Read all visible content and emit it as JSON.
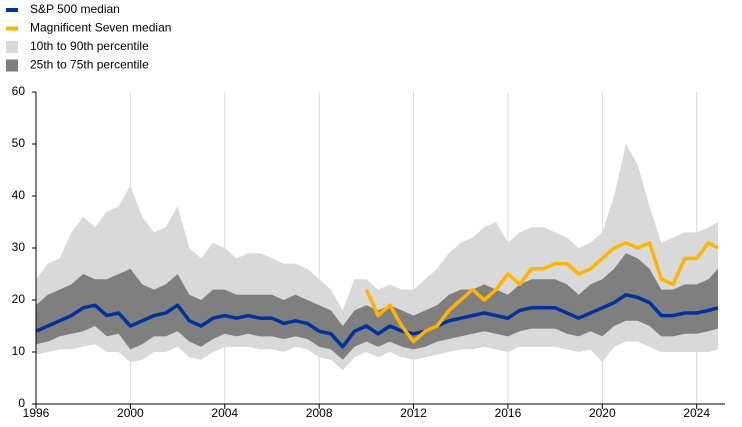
{
  "chart_data": {
    "type": "line",
    "x": [
      1996,
      1996.5,
      1997,
      1997.5,
      1998,
      1998.5,
      1999,
      1999.5,
      2000,
      2000.5,
      2001,
      2001.5,
      2002,
      2002.5,
      2003,
      2003.5,
      2004,
      2004.5,
      2005,
      2005.5,
      2006,
      2006.5,
      2007,
      2007.5,
      2008,
      2008.5,
      2009,
      2009.5,
      2010,
      2010.5,
      2011,
      2011.5,
      2012,
      2012.5,
      2013,
      2013.5,
      2014,
      2014.5,
      2015,
      2015.5,
      2016,
      2016.5,
      2017,
      2017.5,
      2018,
      2018.5,
      2019,
      2019.5,
      2020,
      2020.5,
      2021,
      2021.5,
      2022,
      2022.5,
      2023,
      2023.5,
      2024,
      2024.5,
      2024.9
    ],
    "series": [
      {
        "name": "S&P 500 median",
        "color": "#003299",
        "values": [
          14,
          15,
          16,
          17,
          18.5,
          19,
          17,
          17.5,
          15,
          16,
          17,
          17.5,
          19,
          16,
          15,
          16.5,
          17,
          16.5,
          17,
          16.5,
          16.5,
          15.5,
          16,
          15.5,
          14,
          13.5,
          11,
          14,
          15,
          13.5,
          15,
          14,
          13.5,
          14,
          15,
          16,
          16.5,
          17,
          17.5,
          17,
          16.5,
          18,
          18.5,
          18.5,
          18.5,
          17.5,
          16.5,
          17.5,
          18.5,
          19.5,
          21,
          20.5,
          19.5,
          17,
          17,
          17.5,
          17.5,
          18,
          18.5
        ]
      },
      {
        "name": "Magnificent Seven median",
        "color": "#ffb400",
        "values": [
          null,
          null,
          null,
          null,
          null,
          null,
          null,
          null,
          null,
          null,
          null,
          null,
          null,
          null,
          null,
          null,
          null,
          null,
          null,
          null,
          null,
          null,
          null,
          null,
          null,
          null,
          null,
          null,
          22,
          17,
          19,
          15,
          12,
          14,
          15,
          18,
          20,
          22,
          20,
          22,
          25,
          23,
          26,
          26,
          27,
          27,
          25,
          26,
          28,
          30,
          31,
          30,
          31,
          24,
          23,
          28,
          28,
          31,
          30
        ]
      },
      {
        "name": "10th to 90th percentile",
        "color": "#d9d9d9",
        "lower": [
          9.5,
          10,
          10.5,
          10.5,
          11,
          11.5,
          10,
          10,
          8,
          8.5,
          10,
          10,
          11,
          9,
          8.5,
          10,
          11,
          11,
          11,
          10.5,
          10.5,
          10,
          11,
          10.5,
          9,
          8.5,
          6.5,
          9,
          10,
          9,
          10,
          9,
          8.5,
          9,
          9.5,
          10,
          10.5,
          10.5,
          11,
          10.5,
          10,
          11,
          11,
          11,
          11,
          10.5,
          10,
          10.5,
          8,
          11,
          12,
          12,
          11,
          10,
          10,
          10,
          10,
          10,
          10.5
        ],
        "upper": [
          24,
          27,
          28,
          33,
          36,
          34,
          37,
          38,
          42,
          36,
          33,
          34,
          38,
          30,
          28,
          31,
          30,
          28,
          29,
          29,
          28,
          27,
          27,
          26,
          24,
          22,
          18,
          24,
          24,
          22,
          23,
          22,
          22,
          24,
          26,
          29,
          31,
          32,
          34,
          35,
          31,
          33,
          34,
          34,
          33,
          32,
          30,
          31,
          33,
          40,
          50,
          46,
          38,
          31,
          32,
          33,
          33,
          34,
          35
        ]
      },
      {
        "name": "25th to 75th percentile",
        "color": "#7f7f7f",
        "lower": [
          11.5,
          12,
          13,
          13.5,
          14,
          15,
          13,
          13.5,
          10.5,
          11.5,
          13,
          13,
          14,
          12,
          11,
          12.5,
          13.5,
          13,
          13.5,
          13,
          13,
          12.5,
          13,
          12.5,
          11,
          10.5,
          8.5,
          11,
          12,
          11,
          12,
          11,
          10.5,
          11,
          12,
          12.5,
          13,
          13.5,
          14,
          13.5,
          13,
          14,
          14.5,
          14.5,
          14.5,
          13.5,
          13,
          14,
          13,
          15,
          16,
          16,
          15,
          13,
          13,
          13.5,
          13.5,
          14,
          14.5
        ],
        "upper": [
          19,
          21,
          22,
          23,
          25,
          24,
          24,
          25,
          26,
          23,
          22,
          23,
          25,
          21,
          20,
          22,
          22,
          21,
          21,
          21,
          21,
          20,
          21,
          20,
          19,
          18,
          15,
          18,
          19,
          18,
          19,
          18,
          17,
          18,
          19,
          21,
          22,
          22,
          23,
          22,
          21,
          23,
          24,
          24,
          24,
          23,
          21,
          23,
          24,
          26,
          29,
          28,
          26,
          22,
          22,
          23,
          23,
          24,
          26
        ]
      }
    ],
    "xlim": [
      1996,
      2025.2
    ],
    "xticks": [
      1996,
      2000,
      2004,
      2008,
      2012,
      2016,
      2020,
      2024
    ],
    "ylim": [
      0,
      60
    ],
    "yticks": [
      0,
      10,
      20,
      30,
      40,
      50,
      60
    ],
    "grid": "x",
    "legend": "top-left"
  }
}
